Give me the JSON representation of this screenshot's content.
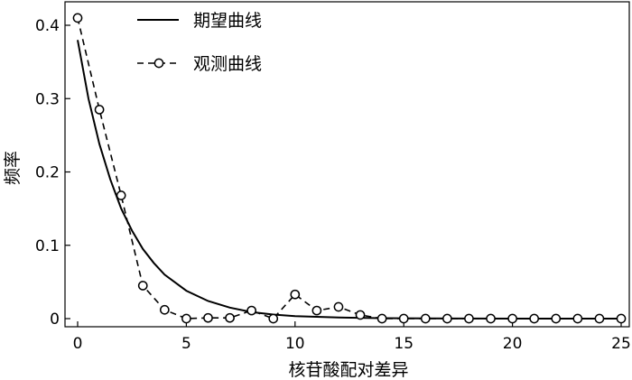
{
  "chart_data": {
    "type": "line",
    "xlabel": "核苷酸配对差异",
    "ylabel": "频率",
    "xlim": [
      0,
      25
    ],
    "ylim": [
      0,
      0.42
    ],
    "x_ticks": [
      0,
      5,
      10,
      15,
      20,
      25
    ],
    "x_tick_labels": [
      "0",
      "5",
      "10",
      "15",
      "20",
      "25"
    ],
    "y_ticks": [
      0,
      0.1,
      0.2,
      0.3,
      0.4
    ],
    "y_tick_labels": [
      "0",
      "0.1",
      "0.2",
      "0.3",
      "0.4"
    ],
    "grid": false,
    "legend_position": "top-center",
    "series": [
      {
        "name": "期望曲线",
        "style": "solid",
        "x": [
          0,
          0.5,
          1,
          1.5,
          2,
          2.5,
          3,
          3.5,
          4,
          5,
          6,
          7,
          8,
          9,
          10,
          12,
          14,
          16,
          18,
          20,
          22,
          25
        ],
        "y": [
          0.38,
          0.3,
          0.238,
          0.19,
          0.15,
          0.12,
          0.095,
          0.076,
          0.06,
          0.038,
          0.024,
          0.015,
          0.009,
          0.0055,
          0.0035,
          0.0015,
          0.0006,
          0.0002,
          0.0001,
          0,
          0,
          0
        ]
      },
      {
        "name": "观测曲线",
        "style": "dashed-circle",
        "x": [
          0,
          1,
          2,
          3,
          4,
          5,
          6,
          7,
          8,
          9,
          10,
          11,
          12,
          13,
          14,
          15,
          16,
          17,
          18,
          19,
          20,
          21,
          22,
          23,
          24,
          25
        ],
        "y": [
          0.41,
          0.285,
          0.168,
          0.045,
          0.012,
          0.0,
          0.001,
          0.001,
          0.011,
          0.0,
          0.033,
          0.011,
          0.016,
          0.005,
          0.0,
          0.0,
          0.0,
          0.0,
          0.0,
          0.0,
          0.0,
          0.0,
          0.0,
          0.0,
          0.0,
          0.0
        ]
      }
    ]
  }
}
